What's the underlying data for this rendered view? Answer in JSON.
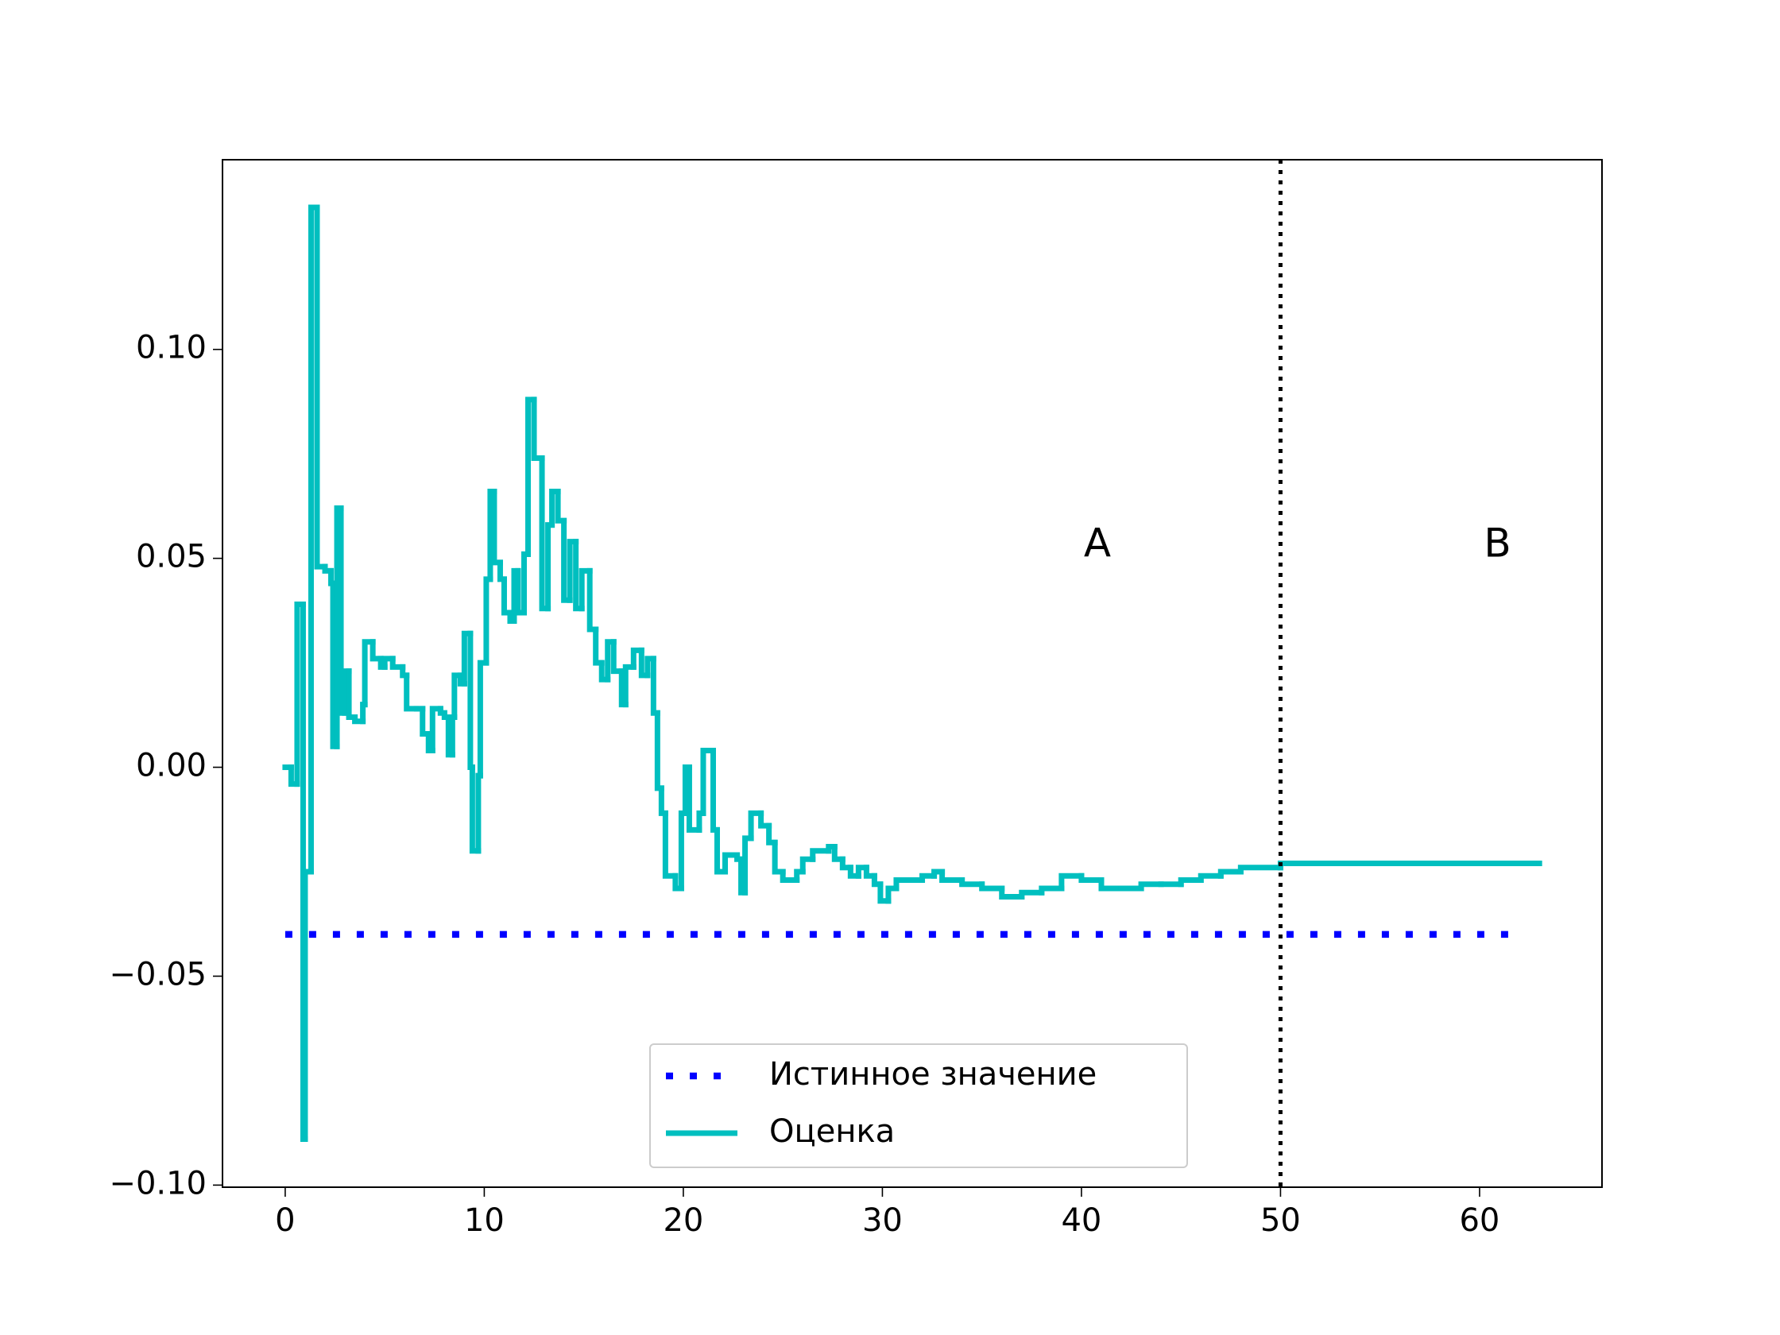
{
  "chart_data": {
    "type": "step",
    "xlim": [
      -3.15,
      66.15
    ],
    "xticks": [
      0,
      10,
      20,
      30,
      40,
      50,
      60
    ],
    "ylim": [
      -0.1005,
      0.1454
    ],
    "yticks": [
      {
        "value": -0.1,
        "label": "−0.10"
      },
      {
        "value": -0.05,
        "label": "−0.05"
      },
      {
        "value": 0,
        "label": "0.00"
      },
      {
        "value": 0.05,
        "label": "0.05"
      },
      {
        "value": 0.1,
        "label": "0.10"
      }
    ],
    "vline": 50,
    "legend": "lower center",
    "annotations": [
      {
        "text": "A",
        "x": 40.8,
        "y": 0.053
      },
      {
        "text": "B",
        "x": 60.9,
        "y": 0.053
      }
    ],
    "series": [
      {
        "name": "Истинное значение",
        "color": "#0000ff",
        "style": "dotted",
        "x": [
          0,
          62
        ],
        "values": [
          -0.04,
          -0.04
        ]
      },
      {
        "name": "Оценка",
        "color": "#00bfbf",
        "style": "step",
        "x": [
          0,
          0.3,
          0.6,
          0.9,
          1.0,
          1.3,
          1.6,
          2.0,
          2.3,
          2.4,
          2.6,
          2.8,
          3.0,
          3.2,
          3.5,
          3.9,
          4.0,
          4.4,
          4.8,
          5.0,
          5.4,
          5.9,
          6.1,
          6.6,
          6.9,
          7.2,
          7.4,
          7.8,
          8.0,
          8.2,
          8.4,
          8.5,
          8.8,
          9.0,
          9.3,
          9.4,
          9.7,
          9.8,
          10.1,
          10.3,
          10.5,
          10.8,
          11.0,
          11.3,
          11.5,
          11.7,
          12.0,
          12.2,
          12.5,
          12.9,
          13.2,
          13.4,
          13.7,
          14.0,
          14.3,
          14.6,
          14.9,
          15.3,
          15.6,
          15.9,
          16.2,
          16.5,
          16.9,
          17.1,
          17.5,
          17.9,
          18.2,
          18.5,
          18.7,
          18.9,
          19.1,
          19.6,
          19.9,
          20.1,
          20.3,
          20.8,
          21.0,
          21.5,
          21.7,
          22.1,
          22.7,
          22.9,
          23.1,
          23.4,
          23.9,
          24.3,
          24.6,
          25.0,
          25.7,
          26.0,
          26.5,
          27.3,
          27.6,
          28.0,
          28.4,
          28.8,
          29.2,
          29.6,
          29.9,
          30.3,
          30.7,
          31.3,
          32.0,
          32.6,
          33.0,
          34.0,
          35.0,
          36.0,
          37.0,
          38.0,
          39.0,
          40.0,
          41.0,
          42.0,
          43.0,
          44.0,
          45.0,
          46.0,
          47.0,
          48.0,
          50.0,
          63.0
        ],
        "values": [
          0.0,
          -0.004,
          0.039,
          -0.089,
          -0.025,
          0.134,
          0.048,
          0.047,
          0.044,
          0.005,
          0.062,
          0.013,
          0.023,
          0.012,
          0.011,
          0.015,
          0.03,
          0.026,
          0.024,
          0.026,
          0.024,
          0.022,
          0.014,
          0.014,
          0.008,
          0.004,
          0.014,
          0.013,
          0.012,
          0.003,
          0.012,
          0.022,
          0.02,
          0.032,
          0.0,
          -0.02,
          -0.002,
          0.025,
          0.045,
          0.066,
          0.049,
          0.045,
          0.037,
          0.035,
          0.047,
          0.037,
          0.051,
          0.088,
          0.074,
          0.038,
          0.058,
          0.066,
          0.059,
          0.04,
          0.054,
          0.038,
          0.047,
          0.033,
          0.025,
          0.021,
          0.03,
          0.023,
          0.015,
          0.024,
          0.028,
          0.022,
          0.026,
          0.013,
          -0.005,
          -0.011,
          -0.026,
          -0.029,
          -0.011,
          0.0,
          -0.015,
          -0.011,
          0.004,
          -0.015,
          -0.025,
          -0.021,
          -0.022,
          -0.03,
          -0.017,
          -0.011,
          -0.014,
          -0.018,
          -0.025,
          -0.027,
          -0.025,
          -0.022,
          -0.02,
          -0.019,
          -0.022,
          -0.024,
          -0.026,
          -0.024,
          -0.026,
          -0.028,
          -0.032,
          -0.029,
          -0.027,
          -0.027,
          -0.026,
          -0.025,
          -0.027,
          -0.028,
          -0.029,
          -0.031,
          -0.03,
          -0.029,
          -0.026,
          -0.027,
          -0.029,
          -0.029,
          -0.028,
          -0.028,
          -0.027,
          -0.026,
          -0.025,
          -0.024,
          -0.023,
          -0.023
        ]
      }
    ]
  }
}
